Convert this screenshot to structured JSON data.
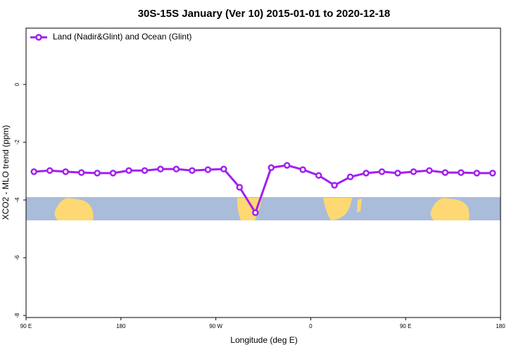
{
  "chart_data": {
    "type": "line",
    "title": "30S-15S January (Ver 10)   2015-01-01 to 2020-12-18",
    "x_label": "Longitude (deg E)",
    "y_label": "XCO2 - MLO trend (ppm)",
    "x": [
      97.5,
      112.5,
      127.5,
      142.5,
      157.5,
      172.5,
      187.5,
      202.5,
      217.5,
      232.5,
      247.5,
      262.5,
      277.5,
      292.5,
      307.5,
      322.5,
      337.5,
      352.5,
      367.5,
      382.5,
      397.5,
      412.5,
      427.5,
      442.5,
      457.5,
      472.5,
      487.5,
      502.5,
      517.5,
      532.5
    ],
    "series": [
      {
        "name": "Land (Nadir&Glint) and Ocean (Glint)",
        "color": "#a020f0",
        "values": [
          -3.02,
          -2.98,
          -3.02,
          -3.05,
          -3.07,
          -3.07,
          -2.98,
          -2.98,
          -2.93,
          -2.93,
          -2.98,
          -2.95,
          -2.93,
          -3.56,
          -4.44,
          -2.88,
          -2.8,
          -2.95,
          -3.15,
          -3.49,
          -3.2,
          -3.07,
          -3.02,
          -3.07,
          -3.02,
          -2.98,
          -3.05,
          -3.05,
          -3.07,
          -3.07
        ]
      }
    ],
    "xlim": [
      90,
      540
    ],
    "xticks": [
      {
        "value": 90,
        "label": "90 E"
      },
      180,
      {
        "value": 270,
        "label": "90 W"
      },
      {
        "value": 360,
        "label": "0"
      },
      {
        "value": 450,
        "label": "90 E"
      },
      {
        "value": 540,
        "label": "180"
      }
    ],
    "ylim": [
      -8.07,
      1.95
    ],
    "yticks": [
      0,
      -2,
      -4,
      -6,
      -8
    ],
    "legend": "upper left"
  }
}
